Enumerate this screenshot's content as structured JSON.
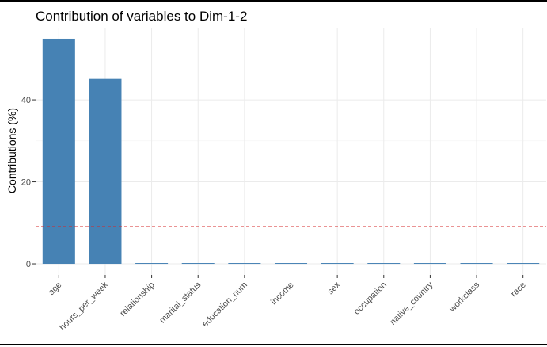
{
  "chart_data": {
    "type": "bar",
    "title": "Contribution of variables to Dim-1-2",
    "xlabel": "",
    "ylabel": "Contributions (%)",
    "categories": [
      "age",
      "hours_per_week",
      "relationship",
      "marital_status",
      "education_num",
      "income",
      "sex",
      "occupation",
      "native_country",
      "workclass",
      "race"
    ],
    "values": [
      54.9,
      45.1,
      0.05,
      0.05,
      0.05,
      0.05,
      0.05,
      0.05,
      0.05,
      0.05,
      0.05
    ],
    "ylim": [
      -2.7,
      57.6
    ],
    "yticks": [
      0,
      20,
      40
    ],
    "reference_line": {
      "value": 9.09,
      "style": "dashed",
      "color": "#d62728"
    },
    "bar_color": "#4682b4",
    "grid": true,
    "legend": "none"
  }
}
